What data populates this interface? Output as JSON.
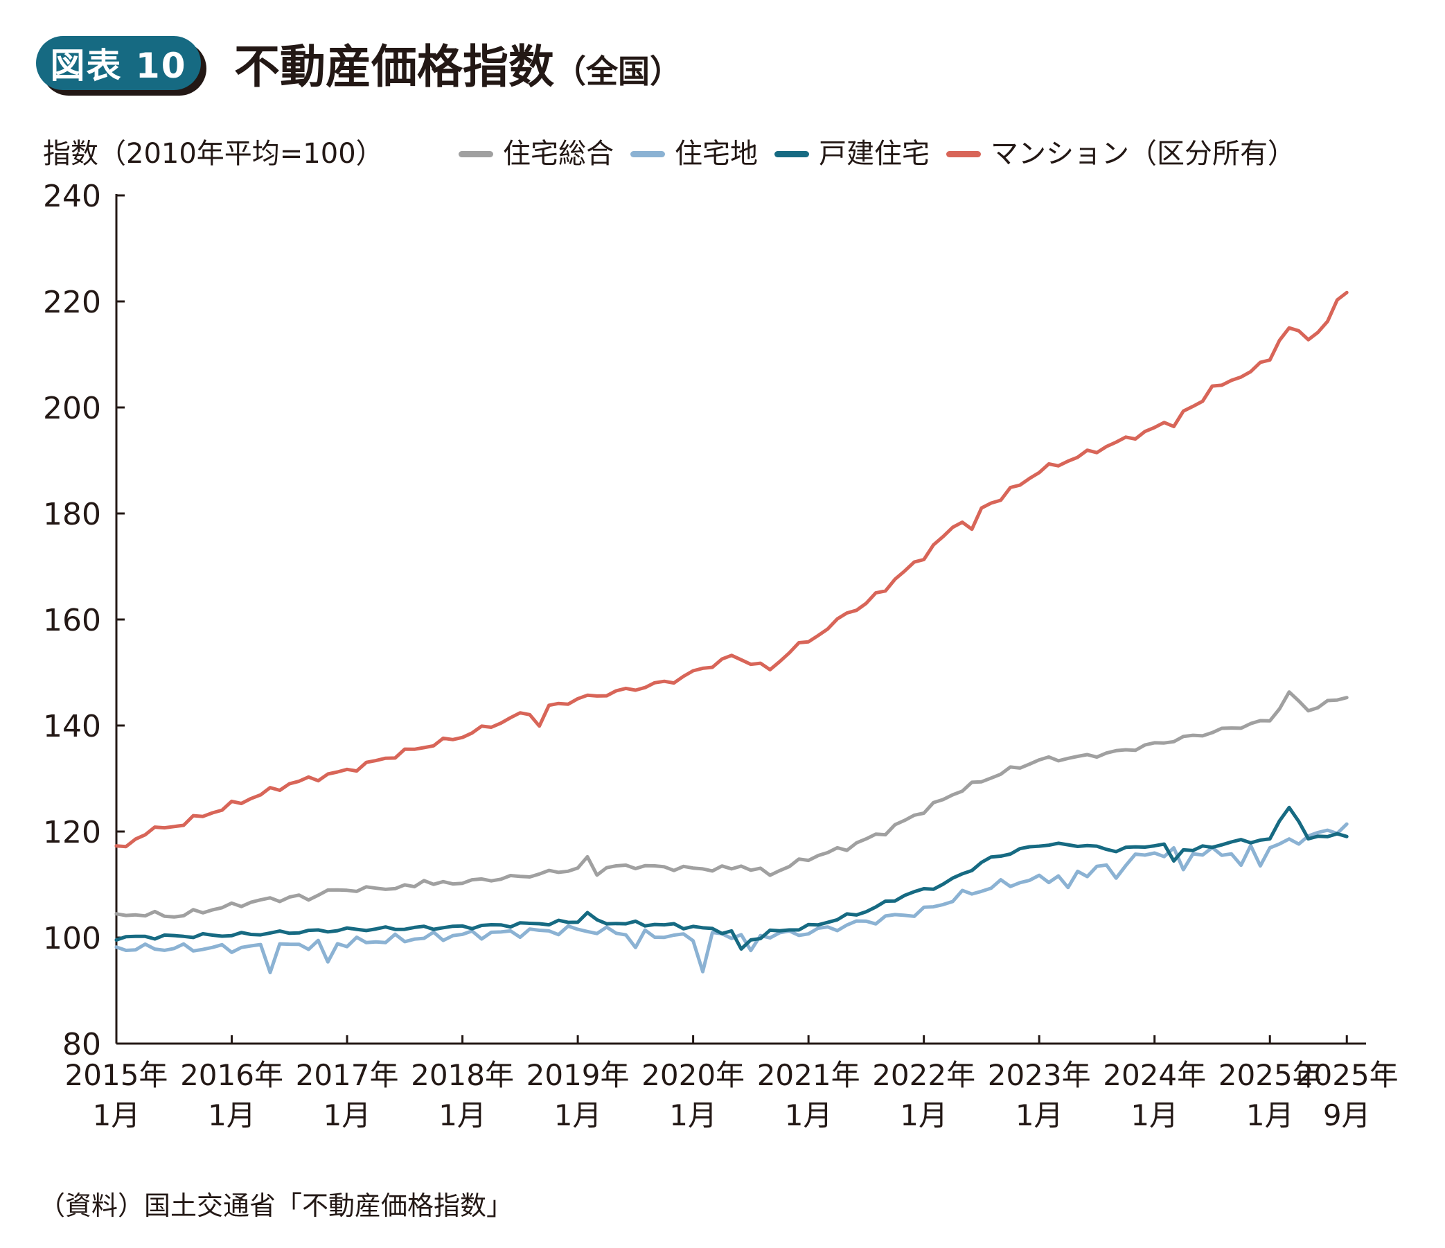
{
  "header": {
    "badge": "図表 10",
    "title": "不動産価格指数",
    "title_suffix": "（全国）"
  },
  "source_note": "（資料）国土交通省「不動産価格指数」",
  "chart_data": {
    "type": "line",
    "title": "不動産価格指数（全国）",
    "ylabel": "指数（2010年平均=100）",
    "xlabel": "",
    "ylim": [
      80,
      240
    ],
    "yticks": [
      80,
      100,
      120,
      140,
      160,
      180,
      200,
      220,
      240
    ],
    "x_start": "2015-01",
    "x_end": "2025-09",
    "x_tick_labels": [
      {
        "month_index": 0,
        "line1": "2015年",
        "line2": "1月"
      },
      {
        "month_index": 12,
        "line1": "2016年",
        "line2": "1月"
      },
      {
        "month_index": 24,
        "line1": "2017年",
        "line2": "1月"
      },
      {
        "month_index": 36,
        "line1": "2018年",
        "line2": "1月"
      },
      {
        "month_index": 48,
        "line1": "2019年",
        "line2": "1月"
      },
      {
        "month_index": 60,
        "line1": "2020年",
        "line2": "1月"
      },
      {
        "month_index": 72,
        "line1": "2021年",
        "line2": "1月"
      },
      {
        "month_index": 84,
        "line1": "2022年",
        "line2": "1月"
      },
      {
        "month_index": 96,
        "line1": "2023年",
        "line2": "1月"
      },
      {
        "month_index": 108,
        "line1": "2024年",
        "line2": "1月"
      },
      {
        "month_index": 120,
        "line1": "2025年",
        "line2": "1月"
      },
      {
        "month_index": 128,
        "line1": "2025年",
        "line2": "9月"
      }
    ],
    "legend_position": "top",
    "series": [
      {
        "name": "住宅総合",
        "color": "#a0a0a0",
        "anchors": [
          [
            0,
            104
          ],
          [
            3,
            104.5
          ],
          [
            6,
            104
          ],
          [
            9,
            105
          ],
          [
            12,
            106
          ],
          [
            15,
            107
          ],
          [
            18,
            107.5
          ],
          [
            21,
            108.5
          ],
          [
            24,
            109
          ],
          [
            30,
            109.5
          ],
          [
            36,
            110.5
          ],
          [
            42,
            111.5
          ],
          [
            48,
            113
          ],
          [
            54,
            113.5
          ],
          [
            60,
            113
          ],
          [
            66,
            113
          ],
          [
            68,
            112
          ],
          [
            72,
            115
          ],
          [
            76,
            117
          ],
          [
            80,
            120
          ],
          [
            84,
            124
          ],
          [
            88,
            128
          ],
          [
            92,
            131
          ],
          [
            96,
            133.5
          ],
          [
            100,
            134
          ],
          [
            104,
            135
          ],
          [
            108,
            136.5
          ],
          [
            112,
            138
          ],
          [
            116,
            139.5
          ],
          [
            120,
            141
          ],
          [
            122,
            146
          ],
          [
            124,
            143
          ],
          [
            128,
            145.5
          ]
        ],
        "spikes": [
          [
            20,
            -1.2
          ],
          [
            32,
            1.2
          ],
          [
            49,
            1.8
          ],
          [
            50,
            -1
          ],
          [
            65,
            0.6
          ]
        ],
        "noise": 0.6
      },
      {
        "name": "住宅地",
        "color": "#8bb2d3",
        "anchors": [
          [
            0,
            98
          ],
          [
            12,
            98
          ],
          [
            24,
            99
          ],
          [
            36,
            100.5
          ],
          [
            48,
            101.5
          ],
          [
            56,
            100.5
          ],
          [
            60,
            100
          ],
          [
            62,
            100.5
          ],
          [
            68,
            100.5
          ],
          [
            72,
            101
          ],
          [
            78,
            103
          ],
          [
            84,
            105
          ],
          [
            88,
            108
          ],
          [
            92,
            110
          ],
          [
            96,
            111
          ],
          [
            100,
            112
          ],
          [
            104,
            114
          ],
          [
            108,
            116
          ],
          [
            116,
            116
          ],
          [
            120,
            117
          ],
          [
            124,
            119
          ],
          [
            128,
            121
          ]
        ],
        "spikes": [
          [
            16,
            -4
          ],
          [
            22,
            -3.5
          ],
          [
            54,
            -2.5
          ],
          [
            61,
            -6.5
          ],
          [
            66,
            -3.5
          ],
          [
            99,
            -2.5
          ],
          [
            104,
            -3
          ],
          [
            111,
            -3
          ],
          [
            117,
            -2.5
          ],
          [
            119,
            -2.5
          ]
        ],
        "noise": 1.0
      },
      {
        "name": "戸建住宅",
        "color": "#166a82",
        "anchors": [
          [
            0,
            100
          ],
          [
            12,
            100.5
          ],
          [
            24,
            101.5
          ],
          [
            36,
            102
          ],
          [
            48,
            103
          ],
          [
            56,
            102.5
          ],
          [
            60,
            102
          ],
          [
            64,
            101
          ],
          [
            66,
            99.5
          ],
          [
            68,
            101
          ],
          [
            72,
            102
          ],
          [
            78,
            105
          ],
          [
            82,
            108
          ],
          [
            86,
            110
          ],
          [
            88,
            112
          ],
          [
            91,
            115
          ],
          [
            94,
            116.5
          ],
          [
            96,
            117.5
          ],
          [
            100,
            117.5
          ],
          [
            104,
            116.5
          ],
          [
            108,
            117.5
          ],
          [
            112,
            116.5
          ],
          [
            116,
            118
          ],
          [
            120,
            118.5
          ],
          [
            122,
            125
          ],
          [
            124,
            118.5
          ],
          [
            126,
            119.5
          ],
          [
            128,
            119
          ]
        ],
        "spikes": [
          [
            49,
            2
          ],
          [
            65,
            -2.5
          ],
          [
            110,
            -2.5
          ]
        ],
        "noise": 0.5
      },
      {
        "name": "マンション（区分所有）",
        "color": "#d86558",
        "anchors": [
          [
            0,
            117
          ],
          [
            1,
            117
          ],
          [
            3,
            120
          ],
          [
            6,
            121
          ],
          [
            12,
            125
          ],
          [
            18,
            129
          ],
          [
            24,
            131.5
          ],
          [
            30,
            135
          ],
          [
            36,
            138
          ],
          [
            42,
            142
          ],
          [
            48,
            145
          ],
          [
            54,
            147
          ],
          [
            58,
            148.5
          ],
          [
            60,
            150
          ],
          [
            64,
            153
          ],
          [
            66,
            152
          ],
          [
            68,
            150.5
          ],
          [
            70,
            154
          ],
          [
            72,
            156
          ],
          [
            78,
            163
          ],
          [
            84,
            172
          ],
          [
            88,
            179
          ],
          [
            92,
            183
          ],
          [
            96,
            188
          ],
          [
            102,
            192
          ],
          [
            108,
            196
          ],
          [
            112,
            200
          ],
          [
            116,
            205
          ],
          [
            120,
            209
          ],
          [
            122,
            215
          ],
          [
            124,
            213
          ],
          [
            126,
            216
          ],
          [
            127,
            220
          ],
          [
            128,
            222
          ]
        ],
        "spikes": [
          [
            44,
            -3
          ],
          [
            76,
            1
          ],
          [
            89,
            -3.5
          ],
          [
            110,
            -1
          ],
          [
            114,
            2
          ],
          [
            121,
            1
          ]
        ],
        "noise": 0.7
      }
    ]
  }
}
